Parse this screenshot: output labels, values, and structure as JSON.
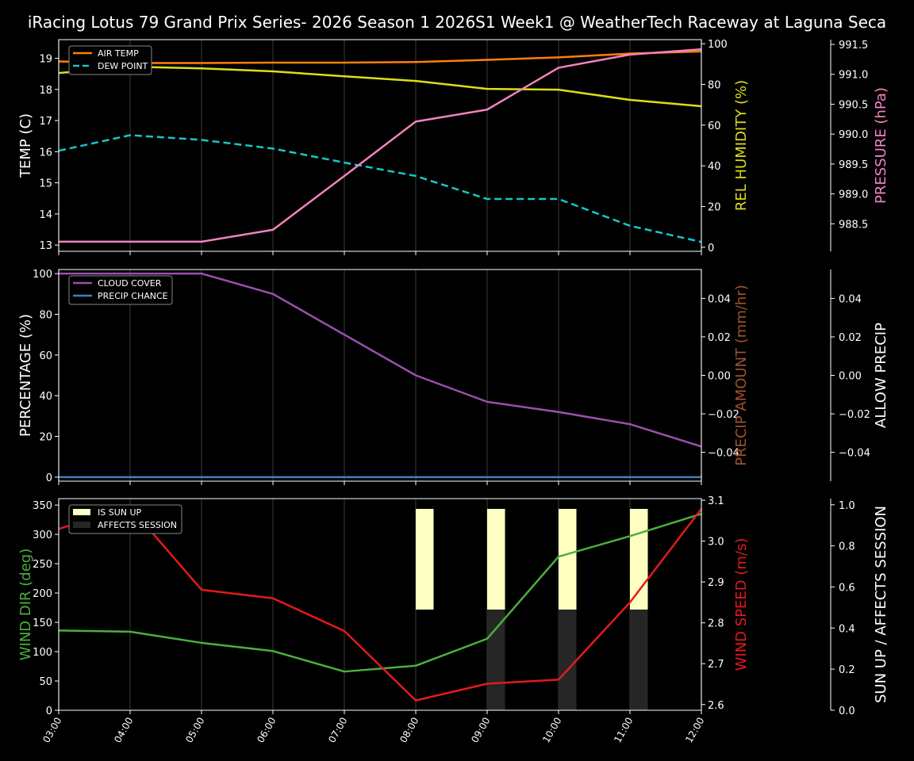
{
  "title": "iRacing Lotus 79 Grand Prix Series- 2026 Season 1 2026S1 Week1 @ WeatherTech Raceway at Laguna Seca",
  "chart_data": [
    {
      "type": "line",
      "x": [
        "03:00",
        "04:00",
        "05:00",
        "06:00",
        "07:00",
        "08:00",
        "09:00",
        "10:00",
        "11:00",
        "12:00"
      ],
      "ylabel": "TEMP (C)",
      "ylim": [
        12.8,
        19.6
      ],
      "yticks": [
        13,
        14,
        15,
        16,
        17,
        18,
        19
      ],
      "y2label": "REL HUMIDITY (%)",
      "y2lim": [
        -2,
        102
      ],
      "y2ticks": [
        0,
        20,
        40,
        60,
        80,
        100
      ],
      "y3label": "PRESSURE (hPa)",
      "y3lim": [
        988.04,
        991.58
      ],
      "y3ticks": [
        "988.5",
        "989.0",
        "989.5",
        "990.0",
        "990.5",
        "991.0",
        "991.5"
      ],
      "legend": "top-left",
      "series": [
        {
          "name": "AIR TEMP",
          "axis": "left",
          "color": "#ff7f0e",
          "style": "solid",
          "values": [
            18.9,
            18.85,
            18.85,
            18.86,
            18.86,
            18.88,
            18.95,
            19.03,
            19.15,
            19.22
          ]
        },
        {
          "name": "DEW POINT",
          "axis": "left",
          "color": "#17c7c9",
          "style": "dashed",
          "values": [
            16.03,
            16.53,
            16.38,
            16.1,
            15.65,
            15.22,
            14.48,
            14.48,
            13.62,
            13.1
          ]
        },
        {
          "axis": "right",
          "color": "#dddd1a",
          "style": "solid",
          "values": [
            85.6,
            88.7,
            87.9,
            86.4,
            84.0,
            81.7,
            77.8,
            77.4,
            72.4,
            69.3
          ]
        },
        {
          "axis": "far-right",
          "color": "#f282be",
          "style": "solid",
          "values": [
            988.2,
            988.2,
            988.2,
            988.4,
            989.3,
            990.21,
            990.41,
            991.11,
            991.33,
            991.42
          ]
        }
      ]
    },
    {
      "type": "line",
      "x": [
        "03:00",
        "04:00",
        "05:00",
        "06:00",
        "07:00",
        "08:00",
        "09:00",
        "10:00",
        "11:00",
        "12:00"
      ],
      "ylabel": "PERCENTAGE (%)",
      "ylim": [
        -2,
        102
      ],
      "yticks": [
        0,
        20,
        40,
        60,
        80,
        100
      ],
      "y2label": "PRECIP AMOUNT (mm/hr)",
      "y2lim": [
        -0.055,
        0.055
      ],
      "y2ticks": [
        "−0.04",
        "−0.02",
        "0.00",
        "0.02",
        "0.04"
      ],
      "y3label": "ALLOW PRECIP",
      "y3ticks": [
        "−0.04",
        "−0.02",
        "0.00",
        "0.02",
        "0.04"
      ],
      "legend": "top-left",
      "series": [
        {
          "name": "CLOUD COVER",
          "color": "#9b4fb0",
          "values": [
            100,
            100,
            100,
            90,
            70,
            50,
            37,
            32,
            26,
            15
          ]
        },
        {
          "name": "PRECIP CHANCE",
          "color": "#3f7fbf",
          "values": [
            0,
            0,
            0,
            0,
            0,
            0,
            0,
            0,
            0,
            0
          ]
        }
      ]
    },
    {
      "type": "line",
      "x": [
        "03:00",
        "04:00",
        "05:00",
        "06:00",
        "07:00",
        "08:00",
        "09:00",
        "10:00",
        "11:00",
        "12:00"
      ],
      "ylabel": "WIND DIR (deg)",
      "ylim": [
        0,
        361
      ],
      "yticks": [
        0,
        50,
        100,
        150,
        200,
        250,
        300,
        350
      ],
      "y2label": "WIND SPEED (m/s)",
      "y2lim": [
        2.586,
        3.104
      ],
      "y2ticks": [
        "2.6",
        "2.7",
        "2.8",
        "2.9",
        "3.0",
        "3.1"
      ],
      "y3label": "SUN UP / AFFECTS SESSION",
      "y3lim": [
        0,
        1.03
      ],
      "y3ticks": [
        "0.0",
        "0.2",
        "0.4",
        "0.6",
        "0.8",
        "1.0"
      ],
      "legend": "top-left",
      "series": [
        {
          "name": "IS SUN UP",
          "type": "bar",
          "color": "#ffffc2",
          "values": [
            0,
            0,
            0,
            0,
            0,
            1,
            1,
            1,
            1,
            0
          ]
        },
        {
          "name": "AFFECTS SESSION",
          "type": "bar",
          "color": "#262626",
          "values": [
            0,
            0,
            0,
            0,
            0,
            0,
            1,
            1,
            1,
            0
          ]
        },
        {
          "axis": "left",
          "color": "#4caf3e",
          "values": [
            136,
            134,
            115,
            101,
            66,
            76,
            122,
            262,
            297,
            335
          ]
        },
        {
          "axis": "right",
          "color": "#e31a1c",
          "values": [
            3.03,
            3.083,
            2.881,
            2.86,
            2.78,
            2.61,
            2.651,
            2.661,
            2.85,
            3.079
          ]
        }
      ]
    }
  ]
}
